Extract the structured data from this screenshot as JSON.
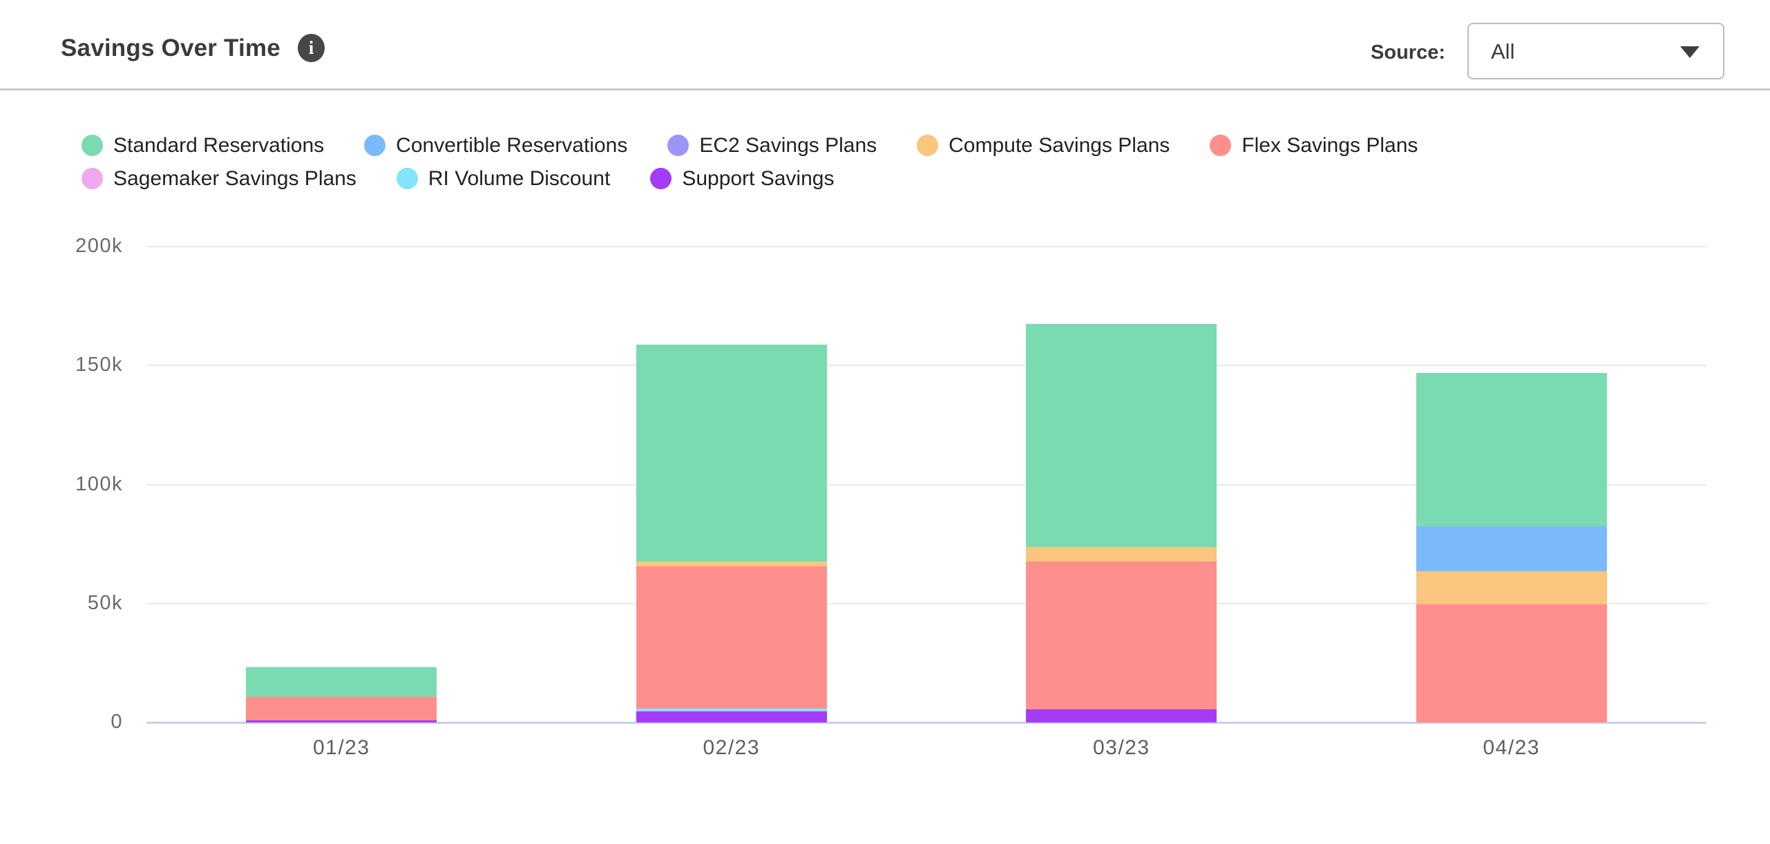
{
  "header": {
    "title": "Savings Over Time",
    "info_icon_glyph": "i",
    "source_label": "Source:",
    "source_value": "All"
  },
  "legend": {
    "rows": [
      [
        {
          "label": "Standard Reservations",
          "color": "#7adbb0"
        },
        {
          "label": "Convertible Reservations",
          "color": "#7abafb"
        },
        {
          "label": "EC2 Savings Plans",
          "color": "#9c95f5"
        },
        {
          "label": "Compute Savings Plans",
          "color": "#f9c57f"
        },
        {
          "label": "Flex Savings Plans",
          "color": "#ff8f8d"
        }
      ],
      [
        {
          "label": "Sagemaker Savings Plans",
          "color": "#efa9f0"
        },
        {
          "label": "RI Volume Discount",
          "color": "#83e4fc"
        },
        {
          "label": "Support Savings",
          "color": "#a43bf6"
        }
      ]
    ]
  },
  "chart_data": {
    "type": "bar",
    "stacked": true,
    "title": "Savings Over Time",
    "xlabel": "",
    "ylabel": "",
    "categories": [
      "01/23",
      "02/23",
      "03/23",
      "04/23"
    ],
    "series": [
      {
        "name": "Standard Reservations",
        "color": "#7adbb0",
        "values_k": [
          12.5,
          91.0,
          94.0,
          64.5
        ]
      },
      {
        "name": "Convertible Reservations",
        "color": "#7abafb",
        "values_k": [
          0,
          0,
          0,
          19.0
        ]
      },
      {
        "name": "EC2 Savings Plans",
        "color": "#9c95f5",
        "values_k": [
          0,
          0,
          0,
          0
        ]
      },
      {
        "name": "Compute Savings Plans",
        "color": "#f9c57f",
        "values_k": [
          0,
          2.0,
          6.0,
          14.0
        ]
      },
      {
        "name": "Flex Savings Plans",
        "color": "#ff8f8d",
        "values_k": [
          9.8,
          60.0,
          62.0,
          49.5
        ]
      },
      {
        "name": "Sagemaker Savings Plans",
        "color": "#efa9f0",
        "values_k": [
          0,
          0,
          0,
          0
        ]
      },
      {
        "name": "RI Volume Discount",
        "color": "#83e4fc",
        "values_k": [
          0,
          1.2,
          0,
          0
        ]
      },
      {
        "name": "Support Savings",
        "color": "#a43bf6",
        "values_k": [
          0.9,
          4.5,
          5.6,
          0
        ]
      }
    ],
    "stack_order_note": "bars stack bottom-to-top in reverse series order",
    "totals_k": [
      23.2,
      158.7,
      167.6,
      147.0
    ],
    "ylim_k": [
      0,
      200
    ],
    "yticks": [
      {
        "value_k": 0,
        "label": "0"
      },
      {
        "value_k": 50,
        "label": "50k"
      },
      {
        "value_k": 100,
        "label": "100k"
      },
      {
        "value_k": 150,
        "label": "150k"
      },
      {
        "value_k": 200,
        "label": "200k"
      }
    ],
    "grid": "horizontal",
    "legend_position": "top"
  }
}
